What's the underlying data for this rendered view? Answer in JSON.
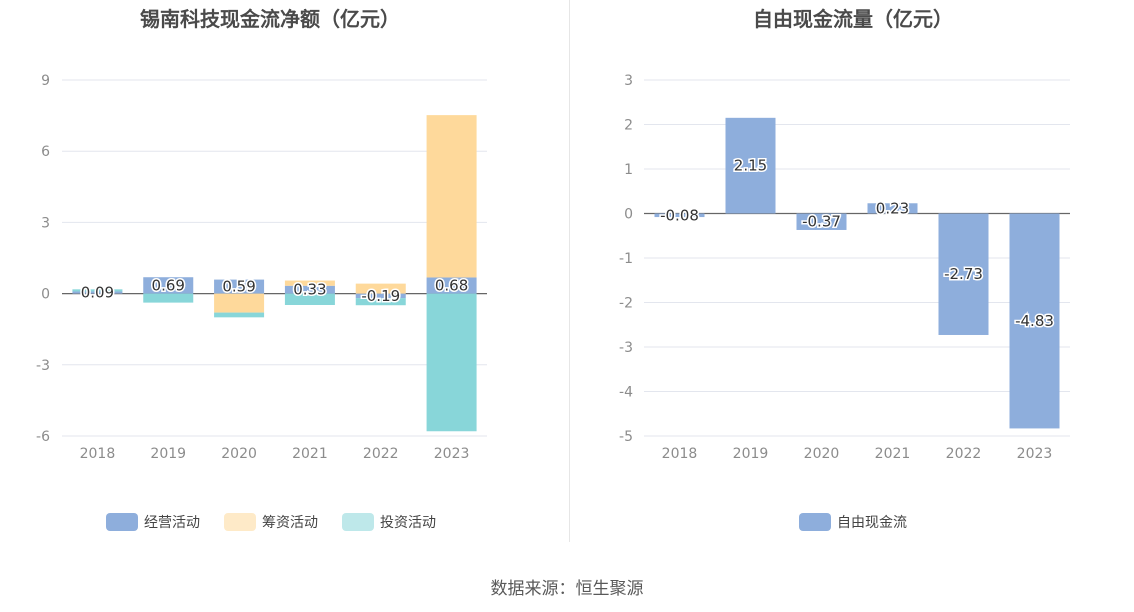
{
  "footer": {
    "source": "数据来源：恒生聚源"
  },
  "chart_data": [
    {
      "type": "bar",
      "title": "锡南科技现金流净额（亿元）",
      "categories": [
        "2018",
        "2019",
        "2020",
        "2021",
        "2022",
        "2023"
      ],
      "stacked": true,
      "series": [
        {
          "name": "经营活动",
          "color": "#8eaedc",
          "values": [
            0.09,
            0.69,
            0.59,
            0.33,
            -0.19,
            0.68
          ]
        },
        {
          "name": "筹资活动",
          "color": "#fed99b",
          "values": [
            0.0,
            0.0,
            -0.8,
            0.22,
            0.42,
            6.84
          ]
        },
        {
          "name": "投资活动",
          "color": "#88d6d9",
          "values": [
            0.09,
            -0.38,
            -0.2,
            -0.48,
            -0.3,
            -5.8
          ]
        }
      ],
      "data_labels": [
        "0.09",
        "0.69",
        "0.59",
        "0.33",
        "-0.19",
        "0.68"
      ],
      "yticks": [
        "9",
        "6",
        "3",
        "0",
        "-3",
        "-6"
      ],
      "ylim": [
        -6,
        9
      ],
      "grid": true,
      "legend_position": "bottom"
    },
    {
      "type": "bar",
      "title": "自由现金流量（亿元）",
      "categories": [
        "2018",
        "2019",
        "2020",
        "2021",
        "2022",
        "2023"
      ],
      "series": [
        {
          "name": "自由现金流",
          "color": "#8eaedc",
          "values": [
            -0.08,
            2.15,
            -0.37,
            0.23,
            -2.73,
            -4.83
          ]
        }
      ],
      "data_labels": [
        "-0.08",
        "2.15",
        "-0.37",
        "0.23",
        "-2.73",
        "-4.83"
      ],
      "yticks": [
        "3",
        "2",
        "1",
        "0",
        "-1",
        "-2",
        "-3",
        "-4",
        "-5"
      ],
      "ylim": [
        -5,
        3
      ],
      "grid": true,
      "legend_position": "bottom"
    }
  ]
}
